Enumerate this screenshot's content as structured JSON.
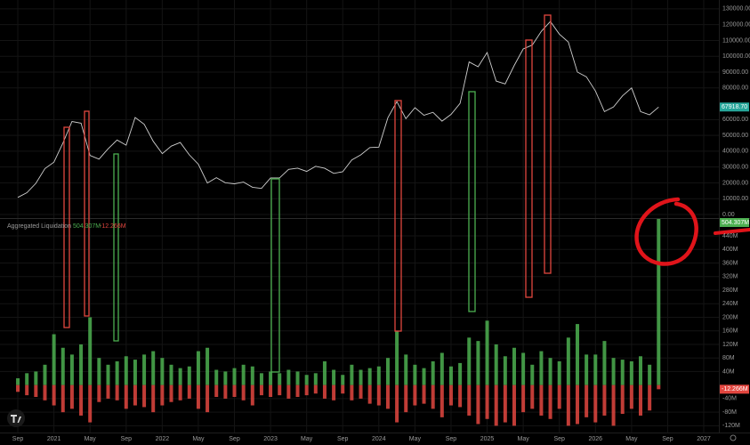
{
  "chart_data": [
    {
      "type": "line",
      "x": [
        "2020-09",
        "2020-10",
        "2020-11",
        "2020-12",
        "2021-01",
        "2021-02",
        "2021-03",
        "2021-04",
        "2021-05",
        "2021-06",
        "2021-07",
        "2021-08",
        "2021-09",
        "2021-10",
        "2021-11",
        "2021-12",
        "2022-01",
        "2022-02",
        "2022-03",
        "2022-04",
        "2022-05",
        "2022-06",
        "2022-07",
        "2022-08",
        "2022-09",
        "2022-10",
        "2022-11",
        "2022-12",
        "2023-01",
        "2023-02",
        "2023-03",
        "2023-04",
        "2023-05",
        "2023-06",
        "2023-07",
        "2023-08",
        "2023-09",
        "2023-10",
        "2023-11",
        "2023-12",
        "2024-01",
        "2024-02",
        "2024-03",
        "2024-04",
        "2024-05",
        "2024-06",
        "2024-07",
        "2024-08",
        "2024-09",
        "2024-10",
        "2024-11",
        "2024-12",
        "2025-01",
        "2025-02",
        "2025-03",
        "2025-04",
        "2025-05",
        "2025-06",
        "2025-07",
        "2025-08",
        "2025-09",
        "2025-10",
        "2025-11",
        "2025-12",
        "2026-01",
        "2026-02",
        "2026-03",
        "2026-04",
        "2026-05",
        "2026-06",
        "2026-07",
        "2026-08"
      ],
      "xlim": [
        "2020-08",
        "2027-03"
      ],
      "series": [
        {
          "color": "#cfcfcf",
          "values": [
            10800,
            13800,
            19700,
            29000,
            33100,
            45200,
            58800,
            57700,
            37300,
            35000,
            41500,
            47100,
            43800,
            61300,
            57000,
            46300,
            38500,
            43200,
            45500,
            37700,
            31800,
            19900,
            23300,
            20000,
            19400,
            20500,
            17200,
            16500,
            23100,
            23100,
            28500,
            29300,
            27200,
            30500,
            29200,
            26000,
            27000,
            34500,
            37700,
            42300,
            42600,
            61200,
            71300,
            60600,
            67500,
            62700,
            64600,
            59000,
            63300,
            70200,
            96400,
            93400,
            102400,
            84300,
            82500,
            94200,
            104600,
            107100,
            115700,
            122000,
            114000,
            109000,
            90000,
            87000,
            78000,
            65000,
            68000,
            75000,
            80000,
            65000,
            63000,
            67918.7
          ],
          "value_labels": [
            null,
            null,
            null,
            null,
            null,
            null,
            null,
            null,
            null,
            null,
            null,
            null,
            null,
            null,
            null,
            null,
            null,
            null,
            null,
            null,
            null,
            null,
            null,
            null,
            null,
            null,
            null,
            null,
            null,
            null,
            null,
            null,
            null,
            null,
            null,
            null,
            null,
            null,
            null,
            null,
            null,
            null,
            null,
            null,
            null,
            null,
            null,
            null,
            null,
            null,
            null,
            null,
            null,
            null,
            null,
            null,
            null,
            null,
            null,
            null,
            null,
            null,
            null,
            null,
            null,
            null,
            null,
            null,
            null,
            null,
            null,
            "67918.70"
          ]
        }
      ],
      "ylim": [
        0,
        135000
      ],
      "yticks": [
        {
          "value": 0,
          "label": "0.00"
        },
        {
          "value": 10000,
          "label": "10000.00"
        },
        {
          "value": 20000,
          "label": "20000.00"
        },
        {
          "value": 30000,
          "label": "30000.00"
        },
        {
          "value": 40000,
          "label": "40000.00"
        },
        {
          "value": 50000,
          "label": "50000.00"
        },
        {
          "value": 60000,
          "label": "60000.00"
        },
        {
          "value": 80000,
          "label": "80000.00"
        },
        {
          "value": 90000,
          "label": "90000.00"
        },
        {
          "value": 100000,
          "label": "100000.00"
        },
        {
          "value": 110000,
          "label": "110000.00"
        },
        {
          "value": 120000,
          "label": "120000.00"
        },
        {
          "value": 130000,
          "label": "130000.00"
        }
      ]
    },
    {
      "type": "bar",
      "title": "Aggregated Liquidation",
      "x": [
        "2020-09",
        "2020-10",
        "2020-11",
        "2020-12",
        "2021-01",
        "2021-02",
        "2021-03",
        "2021-04",
        "2021-05",
        "2021-06",
        "2021-07",
        "2021-08",
        "2021-09",
        "2021-10",
        "2021-11",
        "2021-12",
        "2022-01",
        "2022-02",
        "2022-03",
        "2022-04",
        "2022-05",
        "2022-06",
        "2022-07",
        "2022-08",
        "2022-09",
        "2022-10",
        "2022-11",
        "2022-12",
        "2023-01",
        "2023-02",
        "2023-03",
        "2023-04",
        "2023-05",
        "2023-06",
        "2023-07",
        "2023-08",
        "2023-09",
        "2023-10",
        "2023-11",
        "2023-12",
        "2024-01",
        "2024-02",
        "2024-03",
        "2024-04",
        "2024-05",
        "2024-06",
        "2024-07",
        "2024-08",
        "2024-09",
        "2024-10",
        "2024-11",
        "2024-12",
        "2025-01",
        "2025-02",
        "2025-03",
        "2025-04",
        "2025-05",
        "2025-06",
        "2025-07",
        "2025-08",
        "2025-09",
        "2025-10",
        "2025-11",
        "2025-12",
        "2026-01",
        "2026-02",
        "2026-03",
        "2026-04",
        "2026-05",
        "2026-06",
        "2026-07",
        "2026-08"
      ],
      "xlim": [
        "2020-08",
        "2027-03"
      ],
      "xticks": [
        {
          "value": "2020-09",
          "label": "Sep"
        },
        {
          "value": "2021-01",
          "label": "2021"
        },
        {
          "value": "2021-05",
          "label": "May"
        },
        {
          "value": "2021-09",
          "label": "Sep"
        },
        {
          "value": "2022-01",
          "label": "2022"
        },
        {
          "value": "2022-05",
          "label": "May"
        },
        {
          "value": "2022-09",
          "label": "Sep"
        },
        {
          "value": "2023-01",
          "label": "2023"
        },
        {
          "value": "2023-05",
          "label": "May"
        },
        {
          "value": "2023-09",
          "label": "Sep"
        },
        {
          "value": "2024-01",
          "label": "2024"
        },
        {
          "value": "2024-05",
          "label": "May"
        },
        {
          "value": "2024-09",
          "label": "Sep"
        },
        {
          "value": "2025-01",
          "label": "2025"
        },
        {
          "value": "2025-05",
          "label": "May"
        },
        {
          "value": "2025-09",
          "label": "Sep"
        },
        {
          "value": "2026-01",
          "label": "2026"
        },
        {
          "value": "2026-05",
          "label": "May"
        },
        {
          "value": "2026-09",
          "label": "Sep"
        },
        {
          "value": "2027-01",
          "label": "2027"
        }
      ],
      "series": [
        {
          "color": "#4caf50",
          "values": [
            20,
            35,
            40,
            60,
            150,
            110,
            90,
            120,
            200,
            80,
            60,
            70,
            85,
            75,
            90,
            100,
            80,
            60,
            50,
            55,
            100,
            110,
            45,
            40,
            50,
            60,
            55,
            35,
            40,
            35,
            45,
            40,
            30,
            35,
            70,
            45,
            30,
            60,
            45,
            50,
            55,
            80,
            160,
            90,
            60,
            50,
            70,
            95,
            55,
            65,
            140,
            130,
            190,
            120,
            85,
            110,
            95,
            60,
            100,
            80,
            70,
            140,
            180,
            90,
            90,
            130,
            80,
            75,
            70,
            85,
            60,
            504.307
          ],
          "value_labels": [
            null,
            null,
            null,
            null,
            null,
            null,
            null,
            null,
            null,
            null,
            null,
            null,
            null,
            null,
            null,
            null,
            null,
            null,
            null,
            null,
            null,
            null,
            null,
            null,
            null,
            null,
            null,
            null,
            null,
            null,
            null,
            null,
            null,
            null,
            null,
            null,
            null,
            null,
            null,
            null,
            null,
            null,
            null,
            null,
            null,
            null,
            null,
            null,
            null,
            null,
            null,
            null,
            null,
            null,
            null,
            null,
            null,
            null,
            null,
            null,
            null,
            null,
            null,
            null,
            null,
            null,
            null,
            null,
            null,
            null,
            null,
            "504.307M"
          ]
        },
        {
          "color": "#e2463f",
          "values": [
            -20,
            -30,
            -35,
            -45,
            -60,
            -80,
            -70,
            -90,
            -110,
            -50,
            -40,
            -45,
            -70,
            -60,
            -65,
            -80,
            -60,
            -50,
            -45,
            -40,
            -70,
            -80,
            -35,
            -40,
            -35,
            -45,
            -60,
            -30,
            -35,
            -30,
            -40,
            -35,
            -30,
            -25,
            -40,
            -45,
            -25,
            -45,
            -40,
            -55,
            -60,
            -70,
            -110,
            -80,
            -60,
            -55,
            -70,
            -95,
            -60,
            -65,
            -90,
            -115,
            -100,
            -120,
            -110,
            -120,
            -80,
            -70,
            -90,
            -100,
            -70,
            -120,
            -115,
            -95,
            -110,
            -90,
            -120,
            -85,
            -70,
            -90,
            -75,
            -12.266
          ],
          "value_labels": [
            null,
            null,
            null,
            null,
            null,
            null,
            null,
            null,
            null,
            null,
            null,
            null,
            null,
            null,
            null,
            null,
            null,
            null,
            null,
            null,
            null,
            null,
            null,
            null,
            null,
            null,
            null,
            null,
            null,
            null,
            null,
            null,
            null,
            null,
            null,
            null,
            null,
            null,
            null,
            null,
            null,
            null,
            null,
            null,
            null,
            null,
            null,
            null,
            null,
            null,
            null,
            null,
            null,
            null,
            null,
            null,
            null,
            null,
            null,
            null,
            null,
            null,
            null,
            null,
            null,
            null,
            null,
            null,
            null,
            null,
            null,
            "-12.266M"
          ]
        }
      ],
      "ylim": [
        -140,
        490
      ],
      "yticks": [
        {
          "value": -120,
          "label": "-120M"
        },
        {
          "value": -80,
          "label": "-80M"
        },
        {
          "value": -40,
          "label": "-40M"
        },
        {
          "value": 40,
          "label": "40M"
        },
        {
          "value": 80,
          "label": "80M"
        },
        {
          "value": 120,
          "label": "120M"
        },
        {
          "value": 160,
          "label": "160M"
        },
        {
          "value": 200,
          "label": "200M"
        },
        {
          "value": 240,
          "label": "240M"
        },
        {
          "value": 280,
          "label": "280M"
        },
        {
          "value": 320,
          "label": "320M"
        },
        {
          "value": 360,
          "label": "360M"
        },
        {
          "value": 400,
          "label": "400M"
        },
        {
          "value": 440,
          "label": "440M"
        }
      ]
    }
  ]
}
